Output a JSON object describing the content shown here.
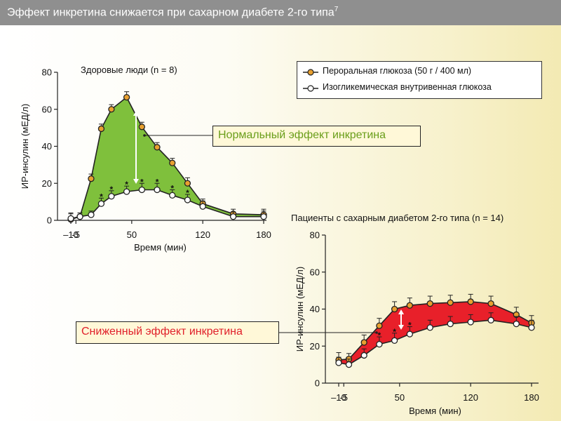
{
  "title": {
    "main": "Эффект инкретина снижается при сахарном диабете 2-го типа",
    "sup": "7"
  },
  "legend": {
    "oral": "Пероральная глюкоза (50 г / 400 мл)",
    "iv": "Изогликемическая внутривенная глюкоза"
  },
  "callouts": {
    "normal": "Нормальный эффект инкретина",
    "reduced": "Сниженный  эффект инкретина"
  },
  "colors": {
    "oral_marker": "#e8a030",
    "healthy_fill": "#7fc03c",
    "diabetes_fill": "#e8202a",
    "title_bar": "#8f8f8f"
  },
  "chart_data": [
    {
      "type": "line",
      "title": "Здоровые люди (n = 8)",
      "xlabel": "Время (мин)",
      "ylabel": "ИР-инсулин (мЕД/л)",
      "xlim": [
        -15,
        185
      ],
      "ylim": [
        0,
        80
      ],
      "xticks": [
        -10,
        -5,
        50,
        120,
        180
      ],
      "xtick_labels": [
        "–10",
        "-5",
        "50",
        "120",
        "180"
      ],
      "yticks": [
        0,
        20,
        40,
        60,
        80
      ],
      "fill_between": true,
      "series": [
        {
          "name": "Пероральная глюкоза (50 г / 400 мл)",
          "x": [
            -10,
            -1,
            10,
            20,
            30,
            45,
            60,
            75,
            90,
            105,
            120,
            150,
            180
          ],
          "y": [
            0.5,
            2,
            22.5,
            49.5,
            60,
            66.5,
            50.5,
            39.5,
            31,
            20,
            9,
            3.5,
            3
          ],
          "err": [
            3,
            2,
            2.5,
            2.5,
            2.5,
            3,
            2.5,
            2.5,
            2.5,
            3,
            2.5,
            2.5,
            3
          ]
        },
        {
          "name": "Изогликемическая внутривенная глюкоза",
          "x": [
            -10,
            -1,
            10,
            20,
            30,
            45,
            60,
            75,
            90,
            105,
            120,
            150,
            180
          ],
          "y": [
            1,
            2,
            3,
            9,
            13,
            15.5,
            16.5,
            16.5,
            13.5,
            11,
            7.5,
            2,
            2
          ],
          "err": [
            3,
            2,
            2,
            3,
            3,
            3,
            3.5,
            3.5,
            3,
            3,
            3,
            2.5,
            3
          ]
        }
      ],
      "annotations": {
        "significance_star_x": [
          20,
          30,
          45,
          60,
          75,
          90,
          105
        ]
      }
    },
    {
      "type": "line",
      "title": "Пациенты с сахарным диабетом 2-го типа (n = 14)",
      "xlabel": "Время (мин)",
      "ylabel": "ИР-инсулин (мЕД/л)",
      "xlim": [
        -15,
        185
      ],
      "ylim": [
        0,
        80
      ],
      "xticks": [
        -10,
        -5,
        50,
        120,
        180
      ],
      "xtick_labels": [
        "–10",
        "-5",
        "50",
        "120",
        "180"
      ],
      "yticks": [
        0,
        20,
        40,
        60,
        80
      ],
      "fill_between": true,
      "series": [
        {
          "name": "Пероральная глюкоза (50 г / 400 мл)",
          "x": [
            -10,
            0,
            15,
            30,
            45,
            60,
            80,
            100,
            120,
            140,
            165,
            180
          ],
          "y": [
            12.5,
            13,
            22,
            31,
            40,
            42,
            43,
            43.5,
            44,
            43,
            37,
            32.5
          ],
          "err": [
            4,
            3,
            4,
            4,
            4,
            4,
            4,
            4,
            4,
            4,
            4,
            4
          ]
        },
        {
          "name": "Изогликемическая внутривенная глюкоза",
          "x": [
            -10,
            0,
            15,
            30,
            45,
            60,
            80,
            100,
            120,
            140,
            165,
            180
          ],
          "y": [
            11,
            10,
            15,
            21,
            23,
            26.5,
            30,
            32,
            33,
            34,
            32,
            30
          ],
          "err": [
            3,
            3,
            3.5,
            4,
            4,
            4,
            4,
            4,
            4,
            4,
            4,
            4
          ]
        }
      ],
      "annotations": {
        "significance_star_x": [
          30,
          45,
          60
        ]
      }
    }
  ]
}
